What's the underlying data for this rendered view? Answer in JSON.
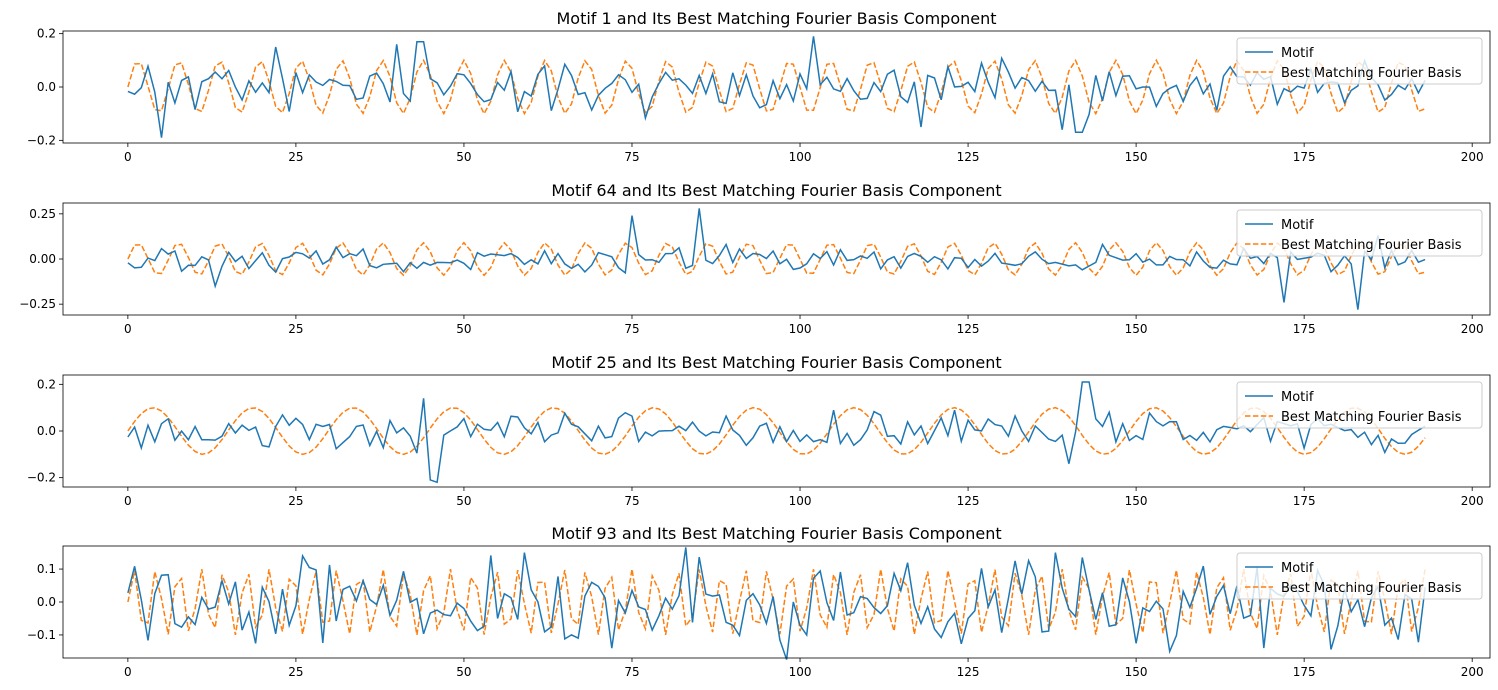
{
  "colors": {
    "motif": "#1f77b4",
    "fourier": "#ff7f0e"
  },
  "chart_data": [
    {
      "type": "line",
      "title": "Motif 1 and Its Best Matching Fourier Basis Component",
      "xlim": [
        -9.65,
        202.65
      ],
      "ylim": [
        -0.21,
        0.21
      ],
      "xticks": [
        0,
        25,
        50,
        75,
        100,
        125,
        150,
        175,
        200
      ],
      "xtick_labels": [
        "0",
        "25",
        "50",
        "75",
        "100",
        "125",
        "150",
        "175",
        "200"
      ],
      "yticks": [
        -0.2,
        0.0,
        0.2
      ],
      "ytick_labels": [
        "−0.2",
        "0.0",
        "0.2"
      ],
      "legend": "upper right",
      "series": [
        {
          "name": "Motif",
          "style": "solid",
          "amplitude": 0.08,
          "seed": 11,
          "spikes": [
            [
              5,
              -0.19
            ],
            [
              22,
              0.15
            ],
            [
              40,
              0.16
            ],
            [
              43,
              0.17
            ],
            [
              44,
              0.17
            ],
            [
              102,
              0.19
            ],
            [
              118,
              -0.15
            ],
            [
              139,
              -0.16
            ],
            [
              141,
              -0.17
            ],
            [
              142,
              -0.17
            ]
          ]
        },
        {
          "name": "Best Matching Fourier Basis",
          "style": "dashed",
          "amplitude": 0.1,
          "period": 6.06,
          "phase": 0.0
        }
      ]
    },
    {
      "type": "line",
      "title": "Motif 64 and Its Best Matching Fourier Basis Component",
      "xlim": [
        -9.65,
        202.65
      ],
      "ylim": [
        -0.31,
        0.31
      ],
      "xticks": [
        0,
        25,
        50,
        75,
        100,
        125,
        150,
        175,
        200
      ],
      "xtick_labels": [
        "0",
        "25",
        "50",
        "75",
        "100",
        "125",
        "150",
        "175",
        "200"
      ],
      "yticks": [
        -0.25,
        0.0,
        0.25
      ],
      "ytick_labels": [
        "−0.25",
        "0.00",
        "0.25"
      ],
      "legend": "upper right",
      "series": [
        {
          "name": "Motif",
          "style": "solid",
          "amplitude": 0.06,
          "seed": 64,
          "spikes": [
            [
              13,
              -0.15
            ],
            [
              75,
              0.24
            ],
            [
              85,
              0.28
            ],
            [
              172,
              -0.24
            ],
            [
              183,
              -0.28
            ],
            [
              186,
              0.13
            ]
          ]
        },
        {
          "name": "Best Matching Fourier Basis",
          "style": "dashed",
          "amplitude": 0.09,
          "period": 6.06,
          "phase": 0.0
        }
      ]
    },
    {
      "type": "line",
      "title": "Motif 25 and Its Best Matching Fourier Basis Component",
      "xlim": [
        -9.65,
        202.65
      ],
      "ylim": [
        -0.24,
        0.24
      ],
      "xticks": [
        0,
        25,
        50,
        75,
        100,
        125,
        150,
        175,
        200
      ],
      "xtick_labels": [
        "0",
        "25",
        "50",
        "75",
        "100",
        "125",
        "150",
        "175",
        "200"
      ],
      "yticks": [
        -0.2,
        0.0,
        0.2
      ],
      "ytick_labels": [
        "−0.2",
        "0.0",
        "0.2"
      ],
      "legend": "upper right",
      "series": [
        {
          "name": "Motif",
          "style": "solid",
          "amplitude": 0.07,
          "seed": 25,
          "spikes": [
            [
              44,
              0.14
            ],
            [
              45,
              -0.21
            ],
            [
              46,
              -0.22
            ],
            [
              58,
              0.06
            ],
            [
              142,
              0.21
            ],
            [
              143,
              0.21
            ],
            [
              140,
              -0.14
            ]
          ]
        },
        {
          "name": "Best Matching Fourier Basis",
          "style": "dashed",
          "amplitude": 0.1,
          "period": 14.9,
          "phase": 0.0
        }
      ]
    },
    {
      "type": "line",
      "title": "Motif 93 and Its Best Matching Fourier Basis Component",
      "xlim": [
        -9.65,
        202.65
      ],
      "ylim": [
        -0.17,
        0.17
      ],
      "xticks": [
        0,
        25,
        50,
        75,
        100,
        125,
        150,
        175,
        200
      ],
      "xtick_labels": [
        "0",
        "25",
        "50",
        "75",
        "100",
        "125",
        "150",
        "175",
        "200"
      ],
      "yticks": [
        -0.1,
        0.0,
        0.1
      ],
      "ytick_labels": [
        "−0.1",
        "0.0",
        "0.1"
      ],
      "legend": "upper right",
      "series": [
        {
          "name": "Motif",
          "style": "solid",
          "amplitude": 0.12,
          "seed": 93,
          "spikes": [
            [
              26,
              0.14
            ],
            [
              59,
              0.15
            ],
            [
              72,
              -0.14
            ],
            [
              138,
              0.15
            ],
            [
              155,
              -0.15
            ],
            [
              169,
              -0.14
            ]
          ]
        },
        {
          "name": "Best Matching Fourier Basis",
          "style": "dashed",
          "amplitude": 0.1,
          "period": 3.37,
          "phase": 0.0
        }
      ]
    }
  ]
}
